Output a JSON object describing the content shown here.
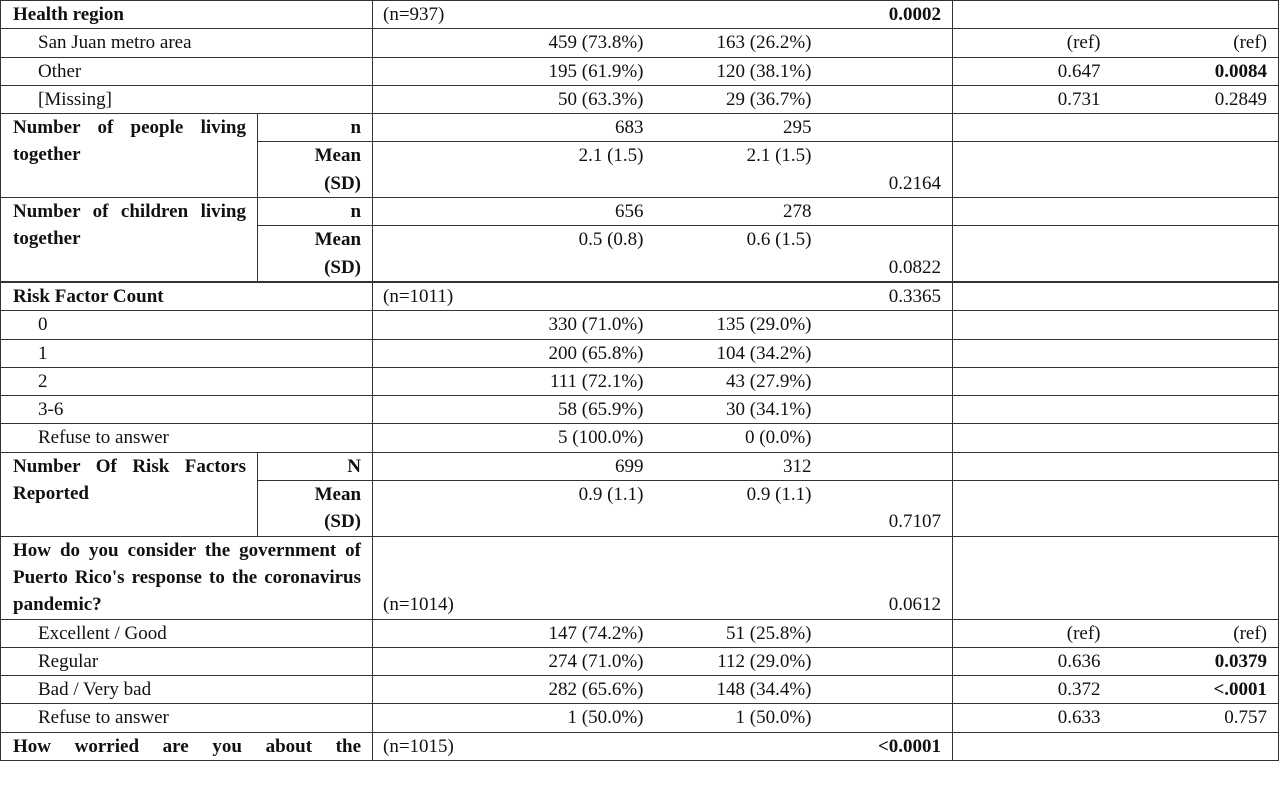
{
  "table": {
    "rows": [
      {
        "kind": "heading",
        "label": "Health region",
        "n": "(n=937)",
        "p": "0.0002",
        "bold": [
          "p"
        ]
      },
      {
        "kind": "item",
        "label": "San Juan metro area",
        "c1": "459 (73.8%)",
        "c2": "163 (26.2%)",
        "or": "(ref)",
        "p2": "(ref)"
      },
      {
        "kind": "item",
        "label": "Other",
        "c1": "195 (61.9%)",
        "c2": "120 (38.1%)",
        "or": "0.647",
        "p2": "0.0084",
        "bold": [
          "p2"
        ]
      },
      {
        "kind": "item",
        "label": "[Missing]",
        "c1": "50 (63.3%)",
        "c2": "29 (36.7%)",
        "or": "0.731",
        "p2": "0.2849"
      },
      {
        "kind": "measure",
        "label": "Number of people living together",
        "stats": [
          {
            "stat": "n",
            "c1": "683",
            "c2": "295"
          },
          {
            "stat": "Mean (SD)",
            "c1": "2.1 (1.5)",
            "c2": "2.1 (1.5)",
            "p": "0.2164"
          }
        ]
      },
      {
        "kind": "measure",
        "label": "Number of children living together",
        "stats": [
          {
            "stat": "n",
            "c1": "656",
            "c2": "278"
          },
          {
            "stat": "Mean (SD)",
            "c1": "0.5 (0.8)",
            "c2": "0.6 (1.5)",
            "p": "0.0822"
          }
        ]
      },
      {
        "kind": "blank"
      },
      {
        "kind": "heading",
        "label": "Risk Factor Count",
        "n": "(n=1011)",
        "p": "0.3365"
      },
      {
        "kind": "item",
        "label": "0",
        "c1": "330 (71.0%)",
        "c2": "135 (29.0%)"
      },
      {
        "kind": "item",
        "label": "1",
        "c1": "200 (65.8%)",
        "c2": "104 (34.2%)"
      },
      {
        "kind": "item",
        "label": "2",
        "c1": "111 (72.1%)",
        "c2": "43 (27.9%)"
      },
      {
        "kind": "item",
        "label": "3-6",
        "c1": "58 (65.9%)",
        "c2": "30 (34.1%)"
      },
      {
        "kind": "item",
        "label": "Refuse to answer",
        "c1": "5 (100.0%)",
        "c2": "0 (0.0%)"
      },
      {
        "kind": "measure",
        "label": "Number Of Risk Factors Reported",
        "stats": [
          {
            "stat": "N",
            "c1": "699",
            "c2": "312"
          },
          {
            "stat": "Mean (SD)",
            "c1": "0.9 (1.1)",
            "c2": "0.9 (1.1)",
            "p": "0.7107"
          }
        ]
      },
      {
        "kind": "heading",
        "label": "How do you consider the government of Puerto Rico's response to the coronavirus pandemic?",
        "n": "(n=1014)",
        "p": "0.0612"
      },
      {
        "kind": "item",
        "label": "Excellent / Good",
        "c1": "147 (74.2%)",
        "c2": "51 (25.8%)",
        "or": "(ref)",
        "p2": "(ref)"
      },
      {
        "kind": "item",
        "label": "Regular",
        "c1": "274 (71.0%)",
        "c2": "112 (29.0%)",
        "or": "0.636",
        "p2": "0.0379",
        "bold": [
          "p2"
        ]
      },
      {
        "kind": "item",
        "label": "Bad / Very bad",
        "c1": "282 (65.6%)",
        "c2": "148 (34.4%)",
        "or": "0.372",
        "p2": "<.0001",
        "bold": [
          "p2"
        ]
      },
      {
        "kind": "item",
        "label": "Refuse to answer",
        "c1": "1 (50.0%)",
        "c2": "1 (50.0%)",
        "or": "0.633",
        "p2": "0.757"
      },
      {
        "kind": "heading",
        "label": "How worried are you about the",
        "n": "(n=1015)",
        "p": "<0.0001",
        "bold": [
          "p"
        ]
      }
    ]
  }
}
